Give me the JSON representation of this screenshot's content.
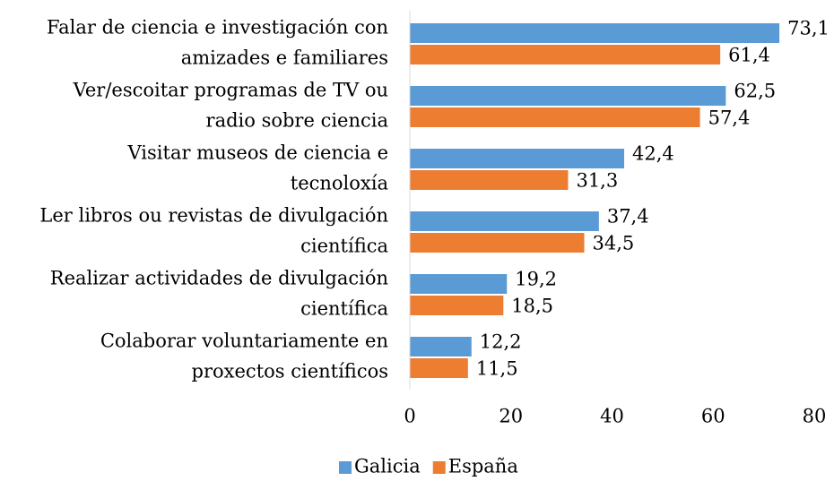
{
  "chart_data": {
    "type": "bar",
    "orientation": "horizontal",
    "categories": [
      [
        "Falar de ciencia e investigación con",
        "amizades e familiares"
      ],
      [
        "Ver/escoitar programas de TV ou",
        "radio sobre ciencia"
      ],
      [
        "Visitar museos de ciencia e",
        "tecnoloxía"
      ],
      [
        "Ler libros ou revistas de divulgación",
        "científica"
      ],
      [
        "Realizar actividades de divulgación",
        "científica"
      ],
      [
        "Colaborar voluntariamente en",
        "proxectos científicos"
      ]
    ],
    "series": [
      {
        "name": "Galicia",
        "color": "#5b9bd5",
        "values": [
          73.1,
          62.5,
          42.4,
          37.4,
          19.2,
          12.2
        ],
        "value_labels": [
          "73,1",
          "62,5",
          "42,4",
          "37,4",
          "19,2",
          "12,2"
        ]
      },
      {
        "name": "España",
        "color": "#ed7d31",
        "values": [
          61.4,
          57.4,
          31.3,
          34.5,
          18.5,
          11.5
        ],
        "value_labels": [
          "61,4",
          "57,4",
          "31,3",
          "34,5",
          "18,5",
          "11,5"
        ]
      }
    ],
    "xlim": [
      0,
      80
    ],
    "xticks": [
      0,
      20,
      40,
      60,
      80
    ],
    "grid": false,
    "legend": "bottom"
  }
}
